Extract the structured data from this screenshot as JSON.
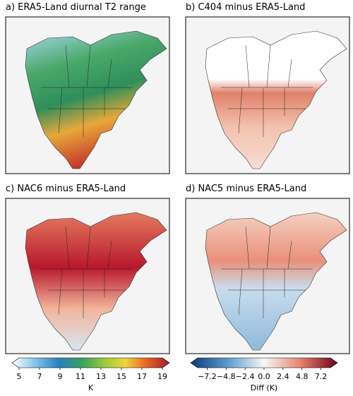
{
  "panels": [
    {
      "title": "a) ERA5-Land diurnal T2 range"
    },
    {
      "title": "b) C404 minus ERA5-Land"
    },
    {
      "title": "c) NAC6 minus ERA5-Land"
    },
    {
      "title": "d) NAC5 minus ERA5-Land"
    }
  ],
  "colorbars": [
    {
      "label": "K",
      "lim": [
        5,
        19
      ],
      "ticks": [
        5,
        7,
        9,
        11,
        13,
        15,
        17,
        19
      ]
    },
    {
      "label": "Diff (K)",
      "lim": [
        -8.4,
        8.4
      ],
      "ticks": [
        {
          "value": -7.2,
          "label": "−7.2"
        },
        {
          "value": -4.8,
          "label": "−4.8"
        },
        {
          "value": -2.4,
          "label": "−2.4"
        },
        {
          "value": 0,
          "label": "0.0"
        },
        2.4,
        4.8,
        7.2
      ]
    }
  ]
}
